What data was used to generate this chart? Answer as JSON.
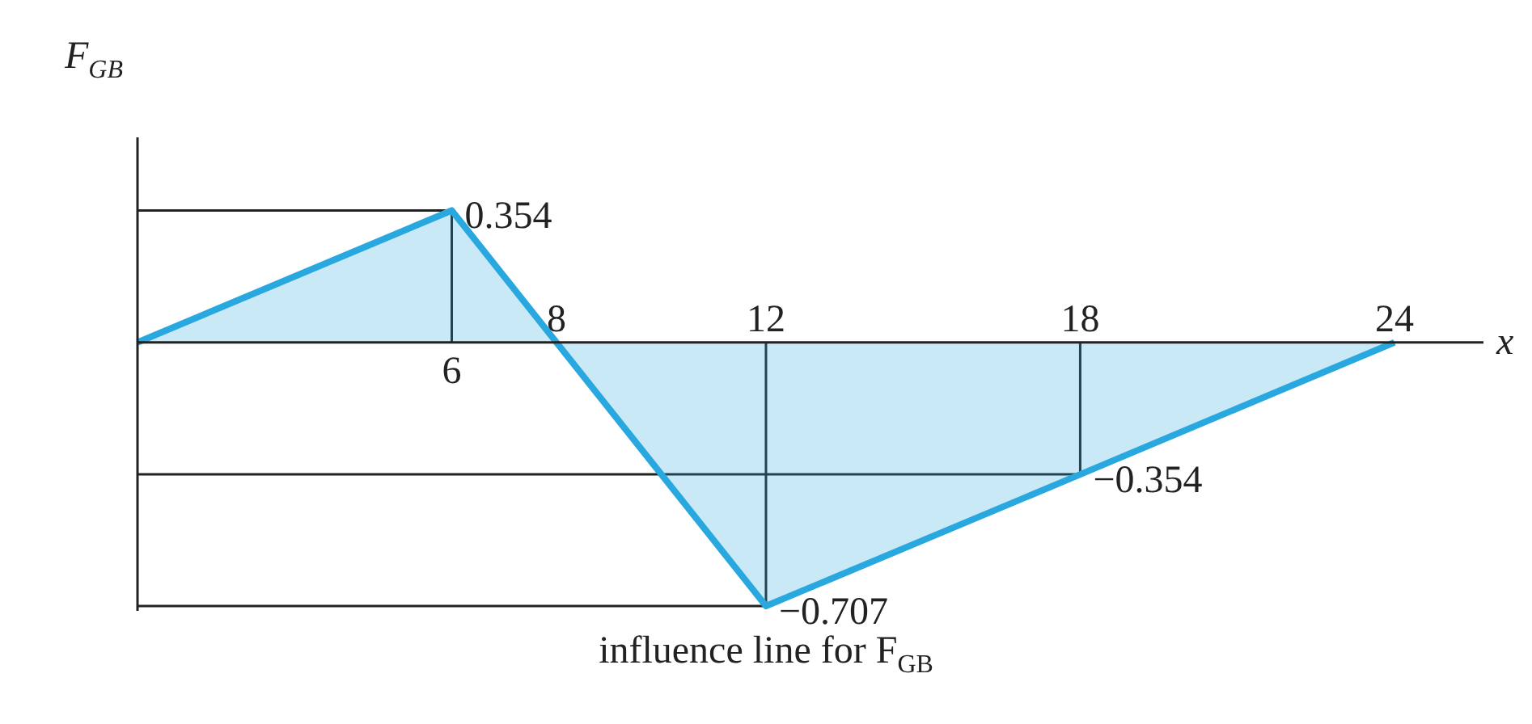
{
  "chart_data": {
    "type": "area",
    "title": "influence line for F$_{GB}$",
    "xlabel": "x",
    "ylabel": "F$_{GB}$",
    "x": [
      0,
      6,
      8,
      12,
      18,
      24
    ],
    "series": [
      {
        "color": "#29a8e0",
        "values": [
          0,
          0.354,
          0,
          -0.707,
          -0.354,
          0
        ],
        "value_labels": [
          null,
          "0.354",
          null,
          "−0.707",
          "−0.354",
          null
        ]
      }
    ],
    "annotations": [
      {
        "text": "6",
        "x": 6,
        "y": 0
      }
    ],
    "xlim": [
      0,
      25.7
    ],
    "ylim": [
      -0.72,
      0.55
    ],
    "xticks": [
      8,
      12,
      18,
      24
    ]
  }
}
